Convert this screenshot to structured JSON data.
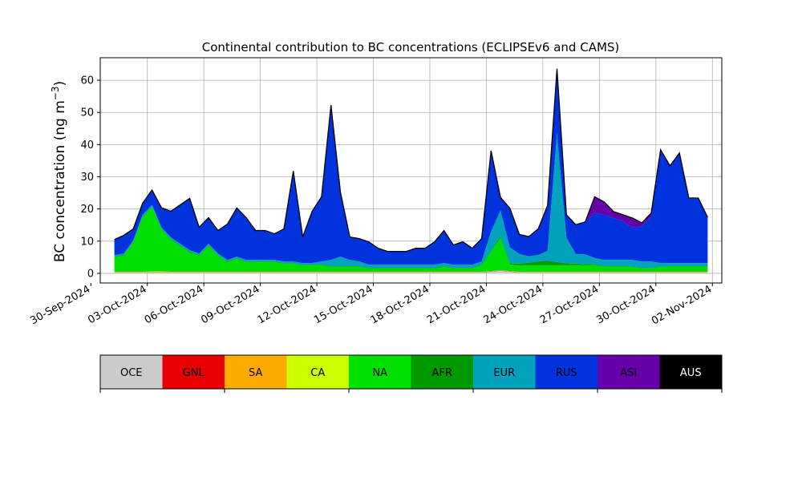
{
  "chart_data": {
    "type": "area",
    "stacked": true,
    "title": "Continental contribution to BC concentrations (ECLIPSEv6 and CAMS)",
    "ylabel_main": "BC concentration (ng m",
    "ylabel_sup": "−3",
    "ylabel_close": ")",
    "xlabel": "",
    "ylim": [
      -3,
      67
    ],
    "xlim": [
      "2024-09-30T12:00",
      "2024-11-02T12:00"
    ],
    "grid": true,
    "x_tick_labels": [
      "30-Sep-2024",
      "03-Oct-2024",
      "06-Oct-2024",
      "09-Oct-2024",
      "12-Oct-2024",
      "15-Oct-2024",
      "18-Oct-2024",
      "21-Oct-2024",
      "24-Oct-2024",
      "27-Oct-2024",
      "30-Oct-2024",
      "02-Nov-2024"
    ],
    "x_tick_dates": [
      "2024-09-30",
      "2024-10-03",
      "2024-10-06",
      "2024-10-09",
      "2024-10-12",
      "2024-10-15",
      "2024-10-18",
      "2024-10-21",
      "2024-10-24",
      "2024-10-27",
      "2024-10-30",
      "2024-11-02"
    ],
    "y_ticks": [
      0,
      10,
      20,
      30,
      40,
      50,
      60
    ],
    "x": [
      "2024-10-01T06:00",
      "2024-10-01T18:00",
      "2024-10-02T06:00",
      "2024-10-02T18:00",
      "2024-10-03T06:00",
      "2024-10-03T18:00",
      "2024-10-04T06:00",
      "2024-10-04T18:00",
      "2024-10-05T06:00",
      "2024-10-05T18:00",
      "2024-10-06T06:00",
      "2024-10-06T18:00",
      "2024-10-07T06:00",
      "2024-10-07T18:00",
      "2024-10-08T06:00",
      "2024-10-08T18:00",
      "2024-10-09T06:00",
      "2024-10-09T18:00",
      "2024-10-10T06:00",
      "2024-10-10T18:00",
      "2024-10-11T06:00",
      "2024-10-11T18:00",
      "2024-10-12T06:00",
      "2024-10-12T18:00",
      "2024-10-13T06:00",
      "2024-10-13T18:00",
      "2024-10-14T06:00",
      "2024-10-14T18:00",
      "2024-10-15T06:00",
      "2024-10-15T18:00",
      "2024-10-16T06:00",
      "2024-10-16T18:00",
      "2024-10-17T06:00",
      "2024-10-17T18:00",
      "2024-10-18T06:00",
      "2024-10-18T18:00",
      "2024-10-19T06:00",
      "2024-10-19T18:00",
      "2024-10-20T06:00",
      "2024-10-20T18:00",
      "2024-10-21T06:00",
      "2024-10-21T18:00",
      "2024-10-22T06:00",
      "2024-10-22T18:00",
      "2024-10-23T06:00",
      "2024-10-23T18:00",
      "2024-10-24T06:00",
      "2024-10-24T18:00",
      "2024-10-25T06:00",
      "2024-10-25T18:00",
      "2024-10-26T06:00",
      "2024-10-26T18:00",
      "2024-10-27T06:00",
      "2024-10-27T18:00",
      "2024-10-28T06:00",
      "2024-10-28T18:00",
      "2024-10-29T06:00",
      "2024-10-29T18:00",
      "2024-10-30T06:00",
      "2024-10-30T18:00",
      "2024-10-31T06:00",
      "2024-10-31T18:00",
      "2024-11-01T06:00",
      "2024-11-01T18:00"
    ],
    "series": [
      {
        "name": "OCE",
        "color": "#cccccc",
        "values": [
          0.3,
          0.3,
          0.3,
          0.3,
          0.3,
          0.3,
          0.3,
          0.3,
          0.3,
          0.3,
          0.3,
          0.3,
          0.3,
          0.3,
          0.3,
          0.3,
          0.3,
          0.3,
          0.3,
          0.3,
          0.3,
          0.3,
          0.3,
          0.3,
          0.3,
          0.3,
          0.3,
          0.3,
          0.3,
          0.3,
          0.3,
          0.3,
          0.3,
          0.3,
          0.3,
          0.3,
          0.3,
          0.3,
          0.3,
          0.3,
          0.5,
          0.8,
          0.5,
          0.3,
          0.3,
          0.3,
          0.3,
          0.3,
          0.3,
          0.3,
          0.3,
          0.3,
          0.3,
          0.3,
          0.3,
          0.3,
          0.3,
          0.3,
          0.3,
          0.3,
          0.3,
          0.3,
          0.3,
          0.3
        ]
      },
      {
        "name": "GNL",
        "color": "#e60000",
        "values": [
          0.1,
          0.1,
          0.1,
          0.1,
          0.1,
          0.1,
          0.1,
          0.1,
          0.1,
          0.1,
          0.1,
          0.1,
          0.1,
          0.1,
          0.1,
          0.1,
          0.1,
          0.1,
          0.1,
          0.1,
          0.1,
          0.1,
          0.1,
          0.1,
          0.1,
          0.1,
          0.1,
          0.1,
          0.1,
          0.1,
          0.1,
          0.1,
          0.1,
          0.1,
          0.1,
          0.1,
          0.1,
          0.1,
          0.1,
          0.1,
          0.1,
          0.1,
          0.1,
          0.1,
          0.1,
          0.1,
          0.1,
          0.1,
          0.1,
          0.1,
          0.1,
          0.1,
          0.1,
          0.1,
          0.1,
          0.1,
          0.1,
          0.1,
          0.1,
          0.1,
          0.1,
          0.1,
          0.1,
          0.1
        ]
      },
      {
        "name": "SA",
        "color": "#ffaa00",
        "values": [
          0,
          0,
          0,
          0,
          0,
          0,
          0,
          0,
          0,
          0,
          0,
          0,
          0,
          0,
          0,
          0,
          0,
          0,
          0,
          0,
          0,
          0,
          0,
          0,
          0,
          0,
          0,
          0,
          0,
          0,
          0,
          0,
          0,
          0,
          0,
          0,
          0,
          0,
          0,
          0,
          0,
          0,
          0,
          0,
          0,
          0,
          0,
          0,
          0,
          0,
          0,
          0,
          0,
          0,
          0,
          0,
          0,
          0,
          0,
          0,
          0,
          0,
          0,
          0
        ]
      },
      {
        "name": "CA",
        "color": "#ccff00",
        "values": [
          0.1,
          0.1,
          0.1,
          0.1,
          0.2,
          0.2,
          0.1,
          0.1,
          0.1,
          0.1,
          0.1,
          0.1,
          0.1,
          0.1,
          0.1,
          0.1,
          0.1,
          0.1,
          0.1,
          0.1,
          0.1,
          0.1,
          0.1,
          0.1,
          0.1,
          0.1,
          0.1,
          0.1,
          0.1,
          0.1,
          0.1,
          0.1,
          0.1,
          0.1,
          0.1,
          0.1,
          0.1,
          0.1,
          0.1,
          0.1,
          0.1,
          0.1,
          0.1,
          0.1,
          0.1,
          0.1,
          0.1,
          0.1,
          0.1,
          0.1,
          0.1,
          0.1,
          0.1,
          0.1,
          0.1,
          0.1,
          0.1,
          0.1,
          0.1,
          0.1,
          0.1,
          0.1,
          0.1,
          0.1
        ]
      },
      {
        "name": "NA",
        "color": "#00e000",
        "values": [
          4.5,
          5,
          9,
          17,
          20,
          13,
          10,
          8,
          6,
          5,
          8,
          5,
          3,
          4,
          3,
          3,
          3,
          3,
          2.5,
          2.5,
          2,
          2,
          2,
          1.5,
          1.5,
          1.5,
          1.5,
          1,
          1,
          1,
          1,
          1,
          1,
          1,
          1,
          1.5,
          1,
          1,
          1,
          2,
          6,
          10,
          2,
          2,
          2,
          2,
          2,
          2,
          2,
          2,
          2,
          2,
          1.5,
          1.5,
          1.5,
          1.5,
          1,
          1,
          1.5,
          1.5,
          1.5,
          1.5,
          1.5,
          1.5
        ]
      },
      {
        "name": "AFR",
        "color": "#009900",
        "values": [
          0.2,
          0.2,
          0.2,
          0.2,
          0.2,
          0.2,
          0.2,
          0.2,
          0.2,
          0.2,
          0.2,
          0.2,
          0.2,
          0.2,
          0.2,
          0.2,
          0.2,
          0.2,
          0.2,
          0.2,
          0.2,
          0.2,
          0.2,
          0.2,
          0.2,
          0.2,
          0.2,
          0.2,
          0.2,
          0.2,
          0.2,
          0.2,
          0.2,
          0.2,
          0.2,
          0.2,
          0.2,
          0.2,
          0.2,
          0.2,
          0.3,
          0.5,
          0.4,
          0.5,
          0.8,
          1.2,
          1.5,
          1.0,
          0.6,
          0.5,
          0.4,
          0.3,
          0.2,
          0.2,
          0.2,
          0.2,
          0.2,
          0.2,
          0.2,
          0.2,
          0.2,
          0.2,
          0.2,
          0.2
        ]
      },
      {
        "name": "EUR",
        "color": "#00a3bb",
        "values": [
          0.5,
          0.5,
          0.5,
          0.5,
          0.5,
          0.5,
          0.5,
          0.5,
          0.5,
          0.5,
          0.5,
          0.5,
          0.5,
          0.5,
          0.5,
          0.5,
          0.5,
          0.5,
          0.5,
          0.5,
          0.5,
          0.5,
          1,
          2,
          3,
          2,
          1.5,
          1,
          1,
          1,
          1,
          1,
          1,
          1,
          1,
          1,
          1,
          1,
          1,
          1,
          6,
          8,
          5,
          3,
          2,
          2,
          3,
          40,
          8,
          3,
          3,
          2,
          2,
          2,
          2,
          2,
          2,
          2,
          1,
          1,
          1,
          1,
          1,
          1
        ]
      },
      {
        "name": "RUS",
        "color": "#0033dd",
        "values": [
          4.7,
          5.5,
          3.5,
          3.5,
          4.5,
          6,
          8,
          12,
          16,
          8,
          8,
          7,
          11,
          15,
          13,
          9,
          9,
          8,
          10,
          28,
          8,
          16,
          20,
          48,
          20,
          7,
          7,
          7,
          5,
          4,
          4,
          4,
          5,
          5,
          7,
          10,
          6,
          7,
          5,
          7,
          25,
          4,
          12,
          6,
          6,
          8,
          14,
          20,
          7,
          9,
          10,
          14,
          14,
          13,
          12,
          10,
          11,
          14,
          35,
          30,
          34,
          20,
          20,
          14
        ]
      },
      {
        "name": "ASI",
        "color": "#6600aa",
        "values": [
          0.1,
          0.1,
          0.1,
          0.1,
          0.1,
          0.1,
          0.1,
          0.1,
          0.1,
          0.1,
          0.1,
          0.1,
          0.1,
          0.1,
          0.1,
          0.1,
          0.1,
          0.1,
          0.1,
          0.1,
          0.1,
          0.1,
          0.1,
          0.1,
          0.1,
          0.1,
          0.1,
          0.1,
          0.1,
          0.1,
          0.1,
          0.1,
          0.1,
          0.1,
          0.1,
          0.1,
          0.1,
          0.1,
          0.1,
          0.1,
          0.1,
          0.1,
          0.1,
          0.1,
          0.1,
          0.1,
          0.1,
          0.1,
          0.1,
          0.1,
          0.1,
          5,
          4,
          2,
          2,
          3,
          1,
          1,
          0.2,
          0.2,
          0.2,
          0.2,
          0.2,
          0.2
        ]
      },
      {
        "name": "AUS",
        "color": "#000000",
        "values": [
          0,
          0,
          0,
          0,
          0,
          0,
          0,
          0,
          0,
          0,
          0,
          0,
          0,
          0,
          0,
          0,
          0,
          0,
          0,
          0,
          0,
          0,
          0,
          0,
          0,
          0,
          0,
          0,
          0,
          0,
          0,
          0,
          0,
          0,
          0,
          0,
          0,
          0,
          0,
          0,
          0,
          0,
          0,
          0,
          0,
          0,
          0,
          0,
          0,
          0,
          0,
          0,
          0,
          0,
          0,
          0,
          0,
          0,
          0,
          0,
          0,
          0,
          0,
          0
        ]
      }
    ],
    "legend": {
      "placement": "bottom",
      "entries": [
        "OCE",
        "GNL",
        "SA",
        "CA",
        "NA",
        "AFR",
        "EUR",
        "RUS",
        "ASI",
        "AUS"
      ],
      "label_colors": [
        "#000000",
        "#000000",
        "#000000",
        "#000000",
        "#000000",
        "#000000",
        "#000000",
        "#000000",
        "#000000",
        "#ffffff"
      ]
    }
  }
}
